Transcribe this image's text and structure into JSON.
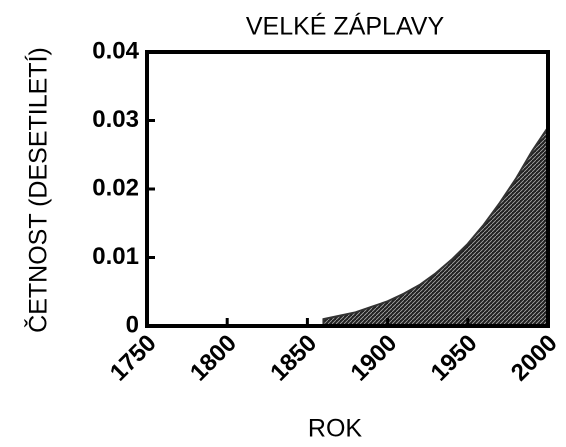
{
  "chart_data": {
    "type": "area",
    "title": "VELKÉ ZÁPLAVY",
    "x_label": "ROK",
    "y_label": "ČETNOST (DESETILETÍ)",
    "x": [
      1860,
      1870,
      1880,
      1890,
      1900,
      1910,
      1920,
      1930,
      1940,
      1950,
      1960,
      1970,
      1980,
      1990,
      2000
    ],
    "values": [
      0.001,
      0.0015,
      0.002,
      0.0028,
      0.0036,
      0.0047,
      0.006,
      0.0077,
      0.0097,
      0.012,
      0.0148,
      0.018,
      0.0215,
      0.0255,
      0.029
    ],
    "color": "#333333",
    "xlim": [
      1750,
      2000
    ],
    "xticks": [
      1750,
      1800,
      1850,
      1900,
      1950,
      2000
    ],
    "ylim": [
      0,
      0.04
    ],
    "yticks": [
      0,
      0.01,
      0.02,
      0.03,
      0.04
    ]
  }
}
